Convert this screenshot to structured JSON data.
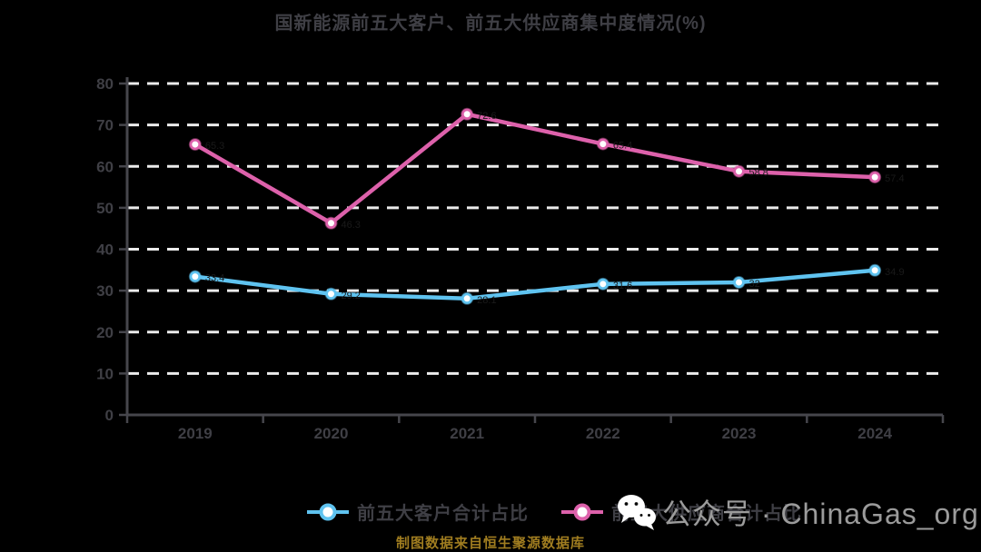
{
  "page": {
    "background_color": "#000000"
  },
  "title": {
    "text": "国新能源前五大客户、前五大供应商集中度情况(%)",
    "color": "#3f3f45"
  },
  "chart_data": {
    "type": "line",
    "categories": [
      "2019",
      "2020",
      "2021",
      "2022",
      "2023",
      "2024"
    ],
    "series": [
      {
        "name": "前五大客户合计占比",
        "color": "#5fc3f0",
        "values": [
          33.4,
          29.2,
          28.1,
          31.6,
          32.0,
          34.9
        ]
      },
      {
        "name": "前五大供应商合计占比",
        "color": "#dd61ab",
        "values": [
          65.3,
          46.3,
          72.6,
          65.4,
          58.8,
          57.4
        ]
      }
    ],
    "ylim": [
      0,
      80
    ],
    "ytick_interval": 10,
    "ytick_labels": [
      "0",
      "10",
      "20",
      "30",
      "40",
      "50",
      "60",
      "70",
      "80"
    ],
    "xlabel": "",
    "ylabel": "",
    "grid": "horizontal-dashed",
    "grid_color": "#ebebeb",
    "axis_color": "#46464c",
    "tick_label_color": "#3f3f45",
    "point_label_color": "#1a1a1a",
    "marker_fill": "#ffffff",
    "legend_position": "bottom"
  },
  "watermark": {
    "icon": "wechat-icon",
    "text": "公众号 · ChinaGas_org",
    "color": "#9b9b9b"
  },
  "footnote": {
    "text": "制图数据来自恒生聚源数据库",
    "color": "#a07d20"
  }
}
